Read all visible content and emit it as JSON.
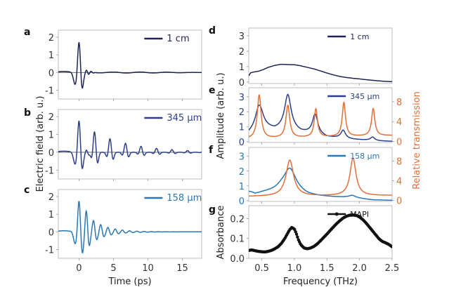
{
  "chart_data": [
    {
      "id": "a",
      "panel_label": "a",
      "type": "line",
      "xlabel": "",
      "ylabel": "",
      "xlim": [
        -3,
        17.8
      ],
      "ylim": [
        -1.5,
        2.4
      ],
      "yticks": [
        -1,
        0,
        1,
        2
      ],
      "ytick_labels": [
        "-1",
        "0",
        "1",
        "2"
      ],
      "xticks": [
        0,
        5,
        10,
        15
      ],
      "zero_line": true,
      "series": [
        {
          "name": "1 cm",
          "color": "#1f2456",
          "model": "pulse",
          "params": {
            "center": 0.0,
            "amp": 1.8,
            "width": 0.45,
            "decay_period": 0,
            "decay": 0
          }
        }
      ],
      "legend": {
        "label": "1 cm",
        "color": "#1f2456",
        "position": "top-right"
      }
    },
    {
      "id": "b",
      "panel_label": "b",
      "type": "line",
      "xlim": [
        -3,
        17.8
      ],
      "ylim": [
        -1.5,
        2.4
      ],
      "yticks": [
        -1,
        0,
        1,
        2
      ],
      "ytick_labels": [
        "-1",
        "0",
        "1",
        "2"
      ],
      "xticks": [
        0,
        5,
        10,
        15
      ],
      "zero_line": true,
      "series": [
        {
          "name": "345 µm",
          "color": "#2d3f8a",
          "model": "echoes",
          "params": {
            "center": 0.0,
            "amp": 1.85,
            "width": 0.45,
            "echo_period": 2.25,
            "echo_ratio": 0.66,
            "echo_count": 8
          }
        }
      ],
      "legend": {
        "label": "345 µm",
        "color": "#2d3f8a",
        "position": "top-right"
      }
    },
    {
      "id": "c",
      "panel_label": "c",
      "type": "line",
      "xlabel": "Time (ps)",
      "xlim": [
        -3,
        17.8
      ],
      "ylim": [
        -1.5,
        2.4
      ],
      "yticks": [
        -1,
        0,
        1,
        2
      ],
      "ytick_labels": [
        "-1",
        "0",
        "1",
        "2"
      ],
      "xticks": [
        0,
        5,
        10,
        15
      ],
      "xtick_labels": [
        "0",
        "5",
        "10",
        "15"
      ],
      "zero_line": false,
      "series": [
        {
          "name": "158 µm",
          "color": "#2b77b5",
          "model": "echoes",
          "params": {
            "center": 0.0,
            "amp": 1.8,
            "width": 0.42,
            "echo_period": 1.05,
            "echo_ratio": 0.62,
            "echo_count": 14
          }
        }
      ],
      "legend": {
        "label": "158 µm",
        "color": "#2b77b5",
        "position": "top-right"
      }
    },
    {
      "id": "d",
      "panel_label": "d",
      "type": "line",
      "xlim": [
        0.3,
        2.5
      ],
      "ylim": [
        -0.1,
        3.5
      ],
      "yticks": [
        0,
        1,
        2,
        3
      ],
      "ytick_labels": [
        "0",
        "1",
        "2",
        "3"
      ],
      "xticks": [
        0.5,
        1.0,
        1.5,
        2.0
      ],
      "series": [
        {
          "name": "1 cm",
          "color": "#1f2456",
          "x": [
            0.3,
            0.33,
            0.38,
            0.45,
            0.52,
            0.6,
            0.7,
            0.8,
            0.9,
            1.0,
            1.1,
            1.2,
            1.3,
            1.4,
            1.5,
            1.6,
            1.7,
            1.8,
            1.9,
            2.0,
            2.1,
            2.2,
            2.3,
            2.4,
            2.5
          ],
          "y": [
            0.4,
            0.6,
            0.65,
            0.7,
            0.8,
            0.95,
            1.08,
            1.15,
            1.13,
            1.12,
            1.05,
            0.95,
            0.85,
            0.72,
            0.58,
            0.46,
            0.36,
            0.29,
            0.24,
            0.2,
            0.15,
            0.11,
            0.07,
            0.04,
            0.02
          ]
        }
      ],
      "legend": {
        "label": "1 cm",
        "color": "#1f2456",
        "position": "top-right"
      }
    },
    {
      "id": "e",
      "panel_label": "e",
      "type": "line",
      "xlim": [
        0.3,
        2.5
      ],
      "ylim": [
        -0.05,
        3.6
      ],
      "ylim_right": [
        -0.2,
        10.8
      ],
      "yticks": [
        0,
        1,
        2,
        3
      ],
      "ytick_labels": [
        "0",
        "1",
        "2",
        "3"
      ],
      "yticks_right": [
        0,
        4,
        8
      ],
      "ytick_labels_right": [
        "0",
        "4",
        "8"
      ],
      "xticks": [
        0.5,
        1.0,
        1.5,
        2.0
      ],
      "series": [
        {
          "name": "345 µm",
          "axis": "left",
          "color": "#2d3f8a",
          "model": "resonances",
          "params": {
            "baseline": 0.25,
            "peaks": [
              [
                0.46,
                2.4,
                0.07
              ],
              [
                0.9,
                3.1,
                0.06
              ],
              [
                1.32,
                1.8,
                0.05
              ],
              [
                1.75,
                0.75,
                0.04
              ],
              [
                2.2,
                0.3,
                0.04
              ]
            ],
            "slope_bg": [
              [
                0.3,
                0.5
              ],
              [
                0.5,
                0.9
              ],
              [
                0.7,
                0.75
              ],
              [
                0.9,
                0.9
              ],
              [
                1.1,
                0.6
              ],
              [
                1.3,
                0.5
              ],
              [
                1.5,
                0.28
              ],
              [
                1.7,
                0.25
              ],
              [
                1.9,
                0.15
              ],
              [
                2.1,
                0.1
              ],
              [
                2.3,
                0.05
              ],
              [
                2.5,
                0.02
              ]
            ]
          }
        },
        {
          "name": "Relative transmission",
          "axis": "right",
          "color": "#e0703a",
          "model": "resonances",
          "params": {
            "baseline": 0.8,
            "peaks": [
              [
                0.46,
                9.3,
                0.035
              ],
              [
                0.9,
                7.2,
                0.035
              ],
              [
                1.33,
                6.5,
                0.03
              ],
              [
                1.76,
                7.8,
                0.03
              ],
              [
                2.21,
                6.6,
                0.03
              ]
            ],
            "slope_bg": [
              [
                0.3,
                0.5
              ],
              [
                2.5,
                1.2
              ]
            ]
          }
        }
      ],
      "legend": {
        "label": "345 µm",
        "color": "#2d3f8a",
        "position": "top-right"
      },
      "right_axis_label": "Relative transmission"
    },
    {
      "id": "f",
      "panel_label": "f",
      "type": "line",
      "xlim": [
        0.3,
        2.5
      ],
      "ylim": [
        -0.05,
        3.6
      ],
      "ylim_right": [
        -0.2,
        10.8
      ],
      "yticks": [
        0,
        1,
        2,
        3
      ],
      "ytick_labels": [
        "0",
        "1",
        "2",
        "3"
      ],
      "yticks_right": [
        0,
        4,
        8
      ],
      "ytick_labels_right": [
        "0",
        "4",
        "8"
      ],
      "xticks": [
        0.5,
        1.0,
        1.5,
        2.0
      ],
      "series": [
        {
          "name": "158 µm",
          "axis": "left",
          "color": "#2b77b5",
          "model": "resonances",
          "params": {
            "baseline": 0.0,
            "peaks": [
              [
                0.93,
                2.2,
                0.11
              ],
              [
                1.89,
                0.35,
                0.06
              ]
            ],
            "slope_bg": [
              [
                0.3,
                0.6
              ],
              [
                0.35,
                0.55
              ],
              [
                0.4,
                0.45
              ],
              [
                0.5,
                0.55
              ],
              [
                0.6,
                0.62
              ],
              [
                0.7,
                0.7
              ],
              [
                0.8,
                0.85
              ],
              [
                1.0,
                0.7
              ],
              [
                1.2,
                0.4
              ],
              [
                1.4,
                0.3
              ],
              [
                1.6,
                0.25
              ],
              [
                1.8,
                0.22
              ],
              [
                2.0,
                0.15
              ],
              [
                2.2,
                0.05
              ],
              [
                2.5,
                0.02
              ]
            ]
          }
        },
        {
          "name": "Relative transmission",
          "axis": "right",
          "color": "#e0703a",
          "model": "resonances",
          "params": {
            "baseline": 0.6,
            "peaks": [
              [
                0.93,
                8.2,
                0.07
              ],
              [
                1.9,
                8.6,
                0.055
              ]
            ],
            "slope_bg": [
              [
                0.3,
                0.8
              ],
              [
                2.5,
                1.0
              ]
            ]
          }
        }
      ],
      "legend": {
        "label": "158 µm",
        "color": "#2b77b5",
        "position": "top-right"
      },
      "right_axis_label": "Relative transmission"
    },
    {
      "id": "g",
      "panel_label": "g",
      "type": "scatter",
      "xlabel": "Frequency (THz)",
      "ylabel": "Absorbance",
      "xlim": [
        0.3,
        2.5
      ],
      "ylim": [
        0.0,
        0.265
      ],
      "yticks": [
        0.0,
        0.1,
        0.2
      ],
      "ytick_labels": [
        "0.0",
        "0.1",
        "0.2"
      ],
      "xticks": [
        0.5,
        1.0,
        1.5,
        2.0,
        2.5
      ],
      "xtick_labels": [
        "0.5",
        "1.0",
        "1.5",
        "2.0",
        "2.5"
      ],
      "series": [
        {
          "name": "MAPI",
          "color": "#111111",
          "x": [
            0.3,
            0.35,
            0.4,
            0.45,
            0.5,
            0.55,
            0.6,
            0.65,
            0.7,
            0.75,
            0.8,
            0.85,
            0.9,
            0.93,
            0.96,
            1.0,
            1.03,
            1.06,
            1.1,
            1.15,
            1.2,
            1.25,
            1.3,
            1.35,
            1.4,
            1.45,
            1.5,
            1.55,
            1.6,
            1.65,
            1.7,
            1.75,
            1.8,
            1.85,
            1.9,
            1.95,
            2.0,
            2.05,
            2.1,
            2.15,
            2.2,
            2.25,
            2.3,
            2.35,
            2.4,
            2.45,
            2.5
          ],
          "y": [
            0.04,
            0.042,
            0.038,
            0.035,
            0.033,
            0.032,
            0.035,
            0.04,
            0.048,
            0.058,
            0.075,
            0.098,
            0.128,
            0.145,
            0.155,
            0.148,
            0.125,
            0.095,
            0.068,
            0.052,
            0.048,
            0.052,
            0.06,
            0.072,
            0.088,
            0.105,
            0.122,
            0.14,
            0.158,
            0.175,
            0.19,
            0.203,
            0.212,
            0.217,
            0.218,
            0.216,
            0.208,
            0.195,
            0.178,
            0.158,
            0.138,
            0.118,
            0.098,
            0.085,
            0.078,
            0.07,
            0.058
          ]
        }
      ],
      "legend": {
        "label": "MAPI",
        "color": "#111111",
        "position": "top-right"
      }
    }
  ],
  "labels": {
    "left_ylabel": "Electric field (arb. u.)",
    "left_xlabel": "Time (ps)",
    "right_ylabel_amp": "Amplitude (arb. u.)",
    "right_ylabel_trans": "Relative transmission",
    "right_ylabel_abs": "Absorbance",
    "right_xlabel": "Frequency (THz)"
  },
  "colors": {
    "trans_axis": "#e0703a",
    "amp_e_axis": "#2d3f8a",
    "amp_f_axis": "#2b77b5"
  }
}
